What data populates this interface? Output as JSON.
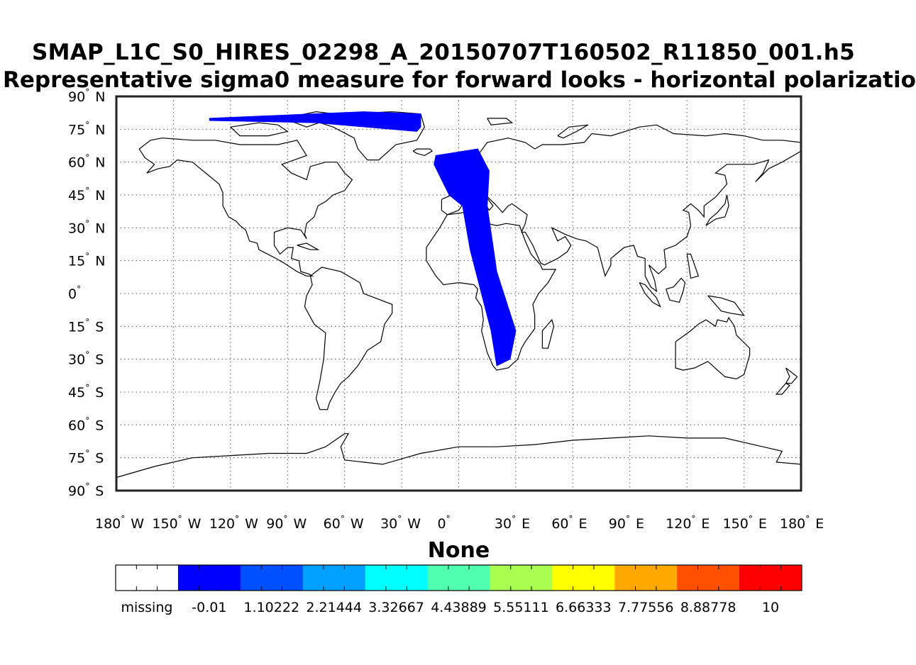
{
  "title_line1": "SMAP_L1C_S0_HIRES_02298_A_20150707T160502_R11850_001.h5",
  "title_line2": "Representative sigma0 measure for forward looks - horizontal polarizatio",
  "map": {
    "projection": "equirectangular",
    "lon_range": [
      -180,
      180
    ],
    "lat_range": [
      -90,
      90
    ],
    "grid": true,
    "lat_ticks": [
      {
        "value": 90,
        "label": "90",
        "hemi": "N"
      },
      {
        "value": 75,
        "label": "75",
        "hemi": "N"
      },
      {
        "value": 60,
        "label": "60",
        "hemi": "N"
      },
      {
        "value": 45,
        "label": "45",
        "hemi": "N"
      },
      {
        "value": 30,
        "label": "30",
        "hemi": "N"
      },
      {
        "value": 15,
        "label": "15",
        "hemi": "N"
      },
      {
        "value": 0,
        "label": "0",
        "hemi": ""
      },
      {
        "value": -15,
        "label": "15",
        "hemi": "S"
      },
      {
        "value": -30,
        "label": "30",
        "hemi": "S"
      },
      {
        "value": -45,
        "label": "45",
        "hemi": "S"
      },
      {
        "value": -60,
        "label": "60",
        "hemi": "S"
      },
      {
        "value": -75,
        "label": "75",
        "hemi": "S"
      },
      {
        "value": -90,
        "label": "90",
        "hemi": "S"
      }
    ],
    "lon_ticks": [
      {
        "value": -180,
        "label": "180",
        "hemi": "W"
      },
      {
        "value": -150,
        "label": "150",
        "hemi": "W"
      },
      {
        "value": -120,
        "label": "120",
        "hemi": "W"
      },
      {
        "value": -90,
        "label": "90",
        "hemi": "W"
      },
      {
        "value": -60,
        "label": "60",
        "hemi": "W"
      },
      {
        "value": -30,
        "label": "30",
        "hemi": "W"
      },
      {
        "value": 0,
        "label": "0",
        "hemi": ""
      },
      {
        "value": 30,
        "label": "30",
        "hemi": "E"
      },
      {
        "value": 60,
        "label": "60",
        "hemi": "E"
      },
      {
        "value": 90,
        "label": "90",
        "hemi": "E"
      },
      {
        "value": 120,
        "label": "120",
        "hemi": "E"
      },
      {
        "value": 150,
        "label": "150",
        "hemi": "E"
      },
      {
        "value": 180,
        "label": "180",
        "hemi": "E"
      }
    ],
    "swath_color": "#0000ff",
    "swath_segments": [
      [
        [
          -131,
          80
        ],
        [
          -50,
          83
        ],
        [
          -20,
          82
        ],
        [
          -20,
          76
        ],
        [
          -22,
          74
        ],
        [
          -75,
          78
        ],
        [
          -131,
          79
        ]
      ],
      [
        [
          -12,
          63
        ],
        [
          10,
          66
        ],
        [
          16,
          56
        ],
        [
          15,
          40
        ],
        [
          20,
          10
        ],
        [
          30,
          -17
        ],
        [
          27,
          -30
        ],
        [
          20,
          -33
        ],
        [
          17,
          -17
        ],
        [
          6,
          20
        ],
        [
          2,
          40
        ],
        [
          -5,
          45
        ],
        [
          -13,
          59
        ]
      ]
    ]
  },
  "colorbar": {
    "title": "None",
    "colors": [
      "#ffffff",
      "#0000ff",
      "#0050ff",
      "#00a0ff",
      "#00ffff",
      "#50ffb0",
      "#a8ff50",
      "#ffff00",
      "#ffa800",
      "#ff5000",
      "#ff0000"
    ],
    "labels": [
      "missing",
      "-0.01",
      "1.10222",
      "2.21444",
      "3.32667",
      "4.43889",
      "5.55111",
      "6.66333",
      "7.77556",
      "8.88778",
      "10"
    ]
  }
}
